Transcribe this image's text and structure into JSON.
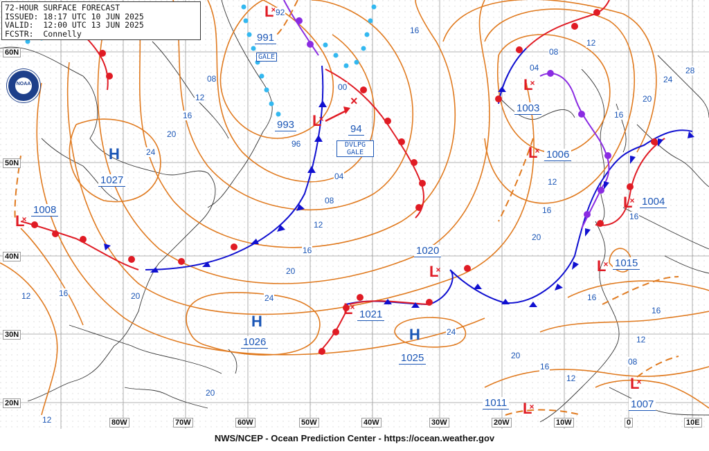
{
  "header": {
    "line1": "72-HOUR SURFACE FORECAST",
    "line2": "ISSUED: 18:17 UTC 10 JUN 2025",
    "line3": "VALID:  12:00 UTC 13 JUN 2025",
    "line4": "FCSTR:  Connelly"
  },
  "footer": "NWS/NCEP - Ocean Prediction Center - https://ocean.weather.gov",
  "logo_text": "NOAA",
  "latitude_labels": [
    "60N",
    "50N",
    "40N",
    "30N",
    "20N"
  ],
  "longitude_labels": [
    "80W",
    "70W",
    "60W",
    "50W",
    "40W",
    "30W",
    "20W",
    "10W",
    "0",
    "10E"
  ],
  "pressure_centers": [
    {
      "type": "H",
      "value": "1027"
    },
    {
      "type": "L",
      "value": "1008"
    },
    {
      "type": "L",
      "value": "991",
      "warning": "GALE"
    },
    {
      "type": "L",
      "value": "993"
    },
    {
      "type": "L",
      "value": "94",
      "warning": "DVLPG GALE"
    },
    {
      "type": "L",
      "value": "1003"
    },
    {
      "type": "L",
      "value": "1006"
    },
    {
      "type": "L",
      "value": "1004"
    },
    {
      "type": "L",
      "value": "1020"
    },
    {
      "type": "L",
      "value": "1015"
    },
    {
      "type": "L",
      "value": "1021"
    },
    {
      "type": "H",
      "value": "1026"
    },
    {
      "type": "H",
      "value": "1025"
    },
    {
      "type": "L",
      "value": "1011"
    },
    {
      "type": "L",
      "value": "1007"
    }
  ],
  "isobar_labels": [
    "92",
    "00",
    "96",
    "04",
    "08",
    "12",
    "16",
    "20",
    "24",
    "28"
  ],
  "colors": {
    "isobar": "#e07a1f",
    "high": "#1a55b5",
    "low": "#e01b24",
    "cold_front": "#1010d0",
    "warm_front": "#e01b24",
    "occluded": "#8a2be2",
    "ice_edge": "#33b8f0",
    "grid": "#b0b0b0",
    "coast": "#333333",
    "text_blue": "#1a55b5"
  }
}
